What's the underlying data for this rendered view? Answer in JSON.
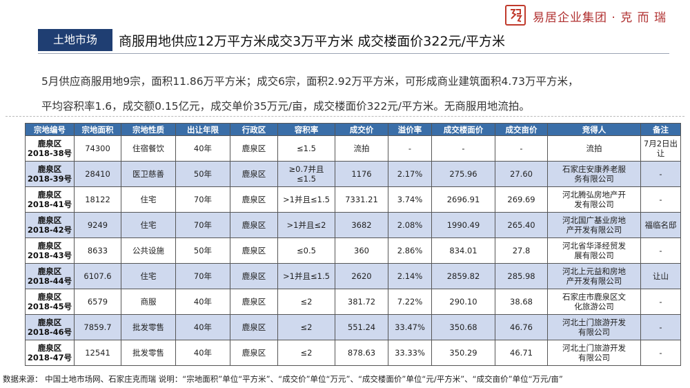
{
  "logo": {
    "text": "易居企业集团 · 克 而 瑞"
  },
  "header": {
    "tag": "土地市场",
    "headline": "商服用地供应12万平方米成交3万平方米 成交楼面价322元/平方米"
  },
  "summary": {
    "line1": "5月供应商服用地9宗，面积11.86万平方米；成交6宗，面积2.92万平方米，可形成商业建筑面积4.73万平方米，",
    "line2": "平均容积率1.6，成交额0.15亿元，成交单价35万元/亩，成交楼面价322元/平方米。无商服用地流拍。"
  },
  "table": {
    "columns": [
      "宗地编号",
      "宗地面积",
      "宗地性质",
      "出让年限",
      "行政区",
      "容积率",
      "成交价",
      "溢价率",
      "成交楼面价",
      "成交亩价",
      "竞得人",
      "备注"
    ],
    "rows": [
      [
        "鹿泉区\n2018-38号",
        "74300",
        "住宿餐饮",
        "40年",
        "鹿泉区",
        "≤1.5",
        "流拍",
        "-",
        "-",
        "-",
        "流拍",
        "7月2日出\n让"
      ],
      [
        "鹿泉区\n2018-39号",
        "28410",
        "医卫慈善",
        "50年",
        "鹿泉区",
        "≥0.7并且\n≤1.5",
        "1176",
        "2.17%",
        "275.96",
        "27.60",
        "石家庄安康养老服\n务有限公司",
        "-"
      ],
      [
        "鹿泉区\n2018-41号",
        "18122",
        "住宅",
        "70年",
        "鹿泉区",
        ">1并且≤1.5",
        "7331.21",
        "3.74%",
        "2696.91",
        "269.69",
        "河北腾弘房地产开\n发有限公司",
        "-"
      ],
      [
        "鹿泉区\n2018-42号",
        "9249",
        "住宅",
        "70年",
        "鹿泉区",
        ">1并且≤2",
        "3682",
        "2.08%",
        "1990.49",
        "265.40",
        "河北国广基业房地\n产开发有限公司",
        "福临名邸"
      ],
      [
        "鹿泉区\n2018-43号",
        "8633",
        "公共设施",
        "50年",
        "鹿泉区",
        "≤0.5",
        "360",
        "2.86%",
        "834.01",
        "27.8",
        "河北省华泽经贸发\n展有限公司",
        "-"
      ],
      [
        "鹿泉区\n2018-44号",
        "6107.6",
        "住宅",
        "70年",
        "鹿泉区",
        ">1并且≤1.5",
        "2620",
        "2.14%",
        "2859.82",
        "285.98",
        "河北上元益和房地\n产开发有限公司",
        "让山"
      ],
      [
        "鹿泉区\n2018-45号",
        "6579",
        "商服",
        "40年",
        "鹿泉区",
        "≤2",
        "381.72",
        "7.22%",
        "290.10",
        "38.68",
        "石家庄市鹿泉区文\n化旅游公司",
        "-"
      ],
      [
        "鹿泉区\n2018-46号",
        "7859.7",
        "批发零售",
        "40年",
        "鹿泉区",
        "≤2",
        "551.24",
        "33.47%",
        "350.68",
        "46.76",
        "河北土门旅游开发\n有限公司",
        "-"
      ],
      [
        "鹿泉区\n2018-47号",
        "12541",
        "批发零售",
        "40年",
        "鹿泉区",
        "≤2",
        "878.63",
        "33.33%",
        "350.29",
        "46.71",
        "河北土门旅游开发\n有限公司",
        "-"
      ]
    ]
  },
  "source": "数据来源：  中国土地市场网、石家庄克而瑞 说明：“宗地面积”单位“平方米”、“成交价”单位“万元”、“成交楼面价”单位“元/平方米”、“成交亩价”单位“万元/亩”"
}
